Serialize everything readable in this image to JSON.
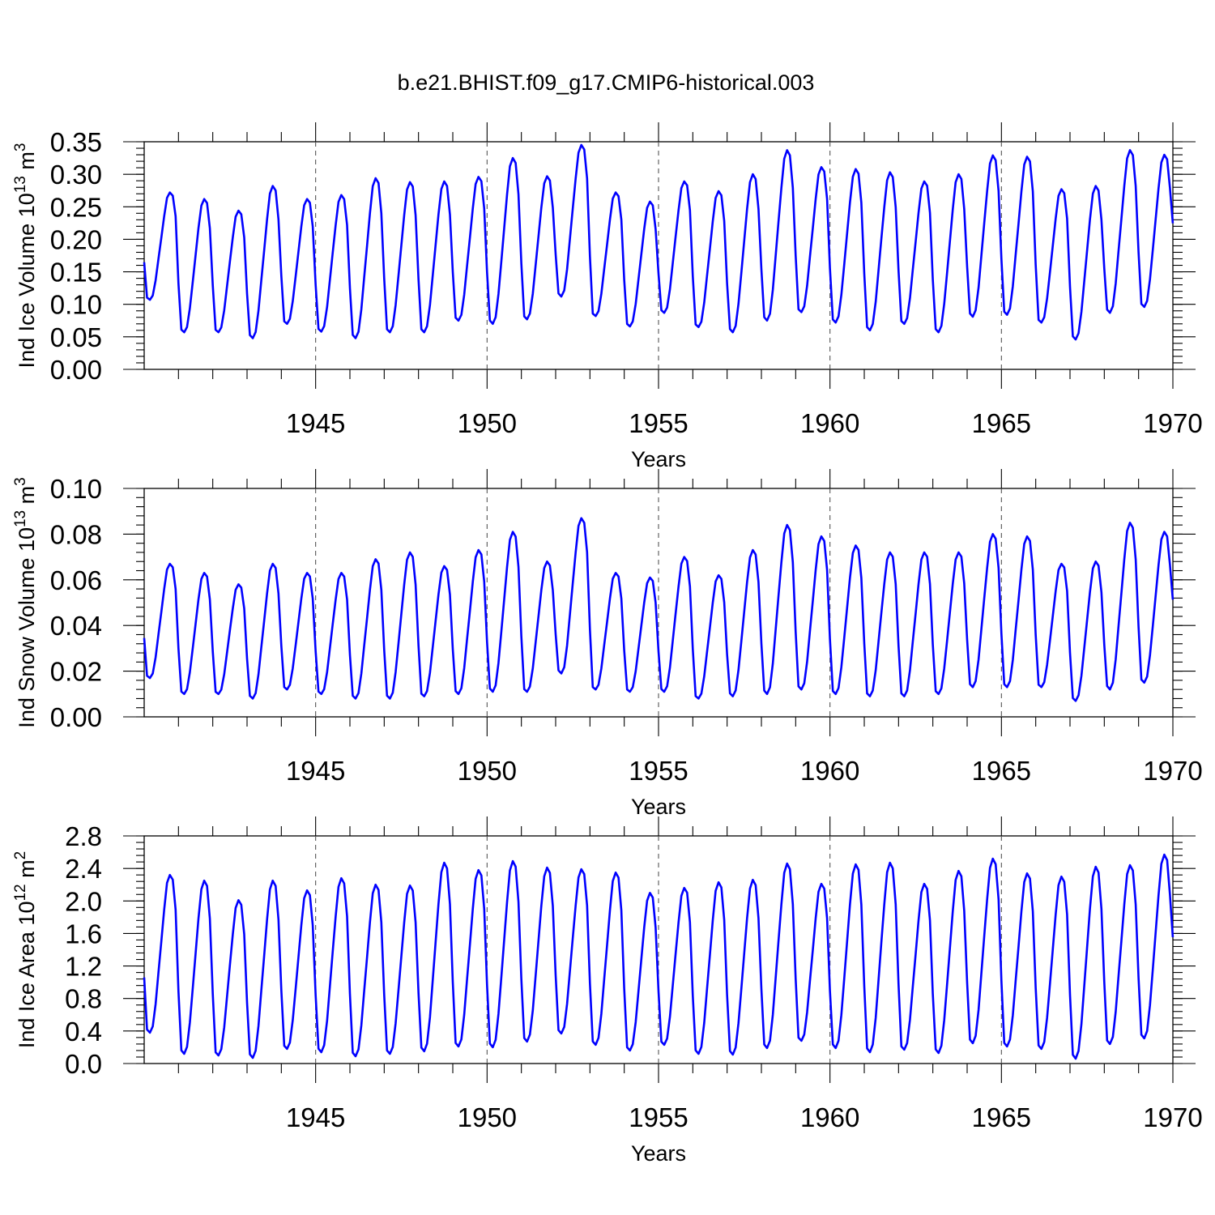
{
  "title": "b.e21.BHIST.f09_g17.CMIP6-historical.003",
  "colors": {
    "series": "#0000ff",
    "axes": "#000000",
    "reference_lines": "#555555"
  },
  "chart_data": [
    {
      "type": "line",
      "id": "ice-volume",
      "title": "",
      "ylabel": {
        "main": "Ind Ice Volume 10",
        "exp": "13",
        "unit": " m",
        "unit_exp": "3"
      },
      "xlabel": "Years",
      "xlim": [
        1940.0,
        1970.0
      ],
      "ylim": [
        0.0,
        0.35
      ],
      "xticks": [
        1945,
        1950,
        1955,
        1960,
        1965,
        1970
      ],
      "xtick_labels": [
        "1945",
        "1950",
        "1955",
        "1960",
        "1965",
        "1970"
      ],
      "yticks": [
        0.0,
        0.05,
        0.1,
        0.15,
        0.2,
        0.25,
        0.3,
        0.35
      ],
      "ytick_labels": [
        "0.00",
        "0.05",
        "0.10",
        "0.15",
        "0.20",
        "0.25",
        "0.30",
        "0.35"
      ],
      "reference_lines_x": [
        1945,
        1950,
        1955,
        1960,
        1965
      ],
      "series": [
        {
          "name": "Ind Ice Volume",
          "start_year": 1940.0,
          "step_years": 0.08333,
          "annual_max": [
            0.272,
            0.262,
            0.244,
            0.282,
            0.262,
            0.268,
            0.294,
            0.288,
            0.289,
            0.296,
            0.325,
            0.297,
            0.345,
            0.272,
            0.258,
            0.289,
            0.274,
            0.3,
            0.337,
            0.311,
            0.308,
            0.303,
            0.289,
            0.3,
            0.329,
            0.327,
            0.277,
            0.282,
            0.337,
            0.33
          ],
          "annual_min": [
            0.107,
            0.057,
            0.057,
            0.048,
            0.07,
            0.058,
            0.048,
            0.057,
            0.057,
            0.075,
            0.07,
            0.077,
            0.112,
            0.082,
            0.066,
            0.087,
            0.065,
            0.057,
            0.075,
            0.088,
            0.072,
            0.06,
            0.07,
            0.057,
            0.081,
            0.084,
            0.072,
            0.046,
            0.087,
            0.096
          ]
        }
      ]
    },
    {
      "type": "line",
      "id": "snow-volume",
      "title": "",
      "ylabel": {
        "main": "Ind Snow Volume 10",
        "exp": "13",
        "unit": " m",
        "unit_exp": "3"
      },
      "xlabel": "Years",
      "xlim": [
        1940.0,
        1970.0
      ],
      "ylim": [
        0.0,
        0.1
      ],
      "xticks": [
        1945,
        1950,
        1955,
        1960,
        1965,
        1970
      ],
      "xtick_labels": [
        "1945",
        "1950",
        "1955",
        "1960",
        "1965",
        "1970"
      ],
      "yticks": [
        0.0,
        0.02,
        0.04,
        0.06,
        0.08,
        0.1
      ],
      "ytick_labels": [
        "0.00",
        "0.02",
        "0.04",
        "0.06",
        "0.08",
        "0.10"
      ],
      "reference_lines_x": [
        1945,
        1950,
        1955,
        1960,
        1965
      ],
      "series": [
        {
          "name": "Ind Snow Volume",
          "start_year": 1940.0,
          "step_years": 0.08333,
          "annual_max": [
            0.067,
            0.063,
            0.058,
            0.067,
            0.063,
            0.063,
            0.069,
            0.072,
            0.066,
            0.073,
            0.081,
            0.068,
            0.087,
            0.063,
            0.061,
            0.07,
            0.062,
            0.073,
            0.084,
            0.079,
            0.075,
            0.072,
            0.072,
            0.072,
            0.08,
            0.079,
            0.067,
            0.068,
            0.085,
            0.081
          ],
          "annual_min": [
            0.017,
            0.01,
            0.01,
            0.008,
            0.012,
            0.01,
            0.008,
            0.008,
            0.009,
            0.01,
            0.011,
            0.011,
            0.019,
            0.012,
            0.011,
            0.011,
            0.008,
            0.009,
            0.01,
            0.012,
            0.01,
            0.009,
            0.009,
            0.01,
            0.013,
            0.013,
            0.013,
            0.007,
            0.012,
            0.015
          ]
        }
      ]
    },
    {
      "type": "line",
      "id": "ice-area",
      "title": "",
      "ylabel": {
        "main": "Ind Ice Area 10",
        "exp": "12",
        "unit": " m",
        "unit_exp": "2"
      },
      "xlabel": "Years",
      "xlim": [
        1940.0,
        1970.0
      ],
      "ylim": [
        0.0,
        2.8
      ],
      "xticks": [
        1945,
        1950,
        1955,
        1960,
        1965,
        1970
      ],
      "xtick_labels": [
        "1945",
        "1950",
        "1955",
        "1960",
        "1965",
        "1970"
      ],
      "yticks": [
        0.0,
        0.4,
        0.8,
        1.2,
        1.6,
        2.0,
        2.4,
        2.8
      ],
      "ytick_labels": [
        "0.0",
        "0.4",
        "0.8",
        "1.2",
        "1.6",
        "2.0",
        "2.4",
        "2.8"
      ],
      "reference_lines_x": [
        1945,
        1950,
        1955,
        1960,
        1965
      ],
      "series": [
        {
          "name": "Ind Ice Area",
          "start_year": 1940.0,
          "step_years": 0.08333,
          "annual_max": [
            2.32,
            2.25,
            2.01,
            2.25,
            2.13,
            2.28,
            2.2,
            2.19,
            2.47,
            2.38,
            2.49,
            2.41,
            2.39,
            2.35,
            2.1,
            2.16,
            2.23,
            2.26,
            2.46,
            2.21,
            2.45,
            2.47,
            2.21,
            2.37,
            2.52,
            2.34,
            2.3,
            2.42,
            2.44,
            2.57
          ],
          "annual_min": [
            0.38,
            0.12,
            0.1,
            0.07,
            0.18,
            0.14,
            0.09,
            0.12,
            0.15,
            0.21,
            0.2,
            0.27,
            0.37,
            0.23,
            0.16,
            0.23,
            0.12,
            0.11,
            0.19,
            0.28,
            0.19,
            0.14,
            0.17,
            0.13,
            0.25,
            0.21,
            0.18,
            0.06,
            0.24,
            0.31
          ]
        }
      ]
    }
  ]
}
